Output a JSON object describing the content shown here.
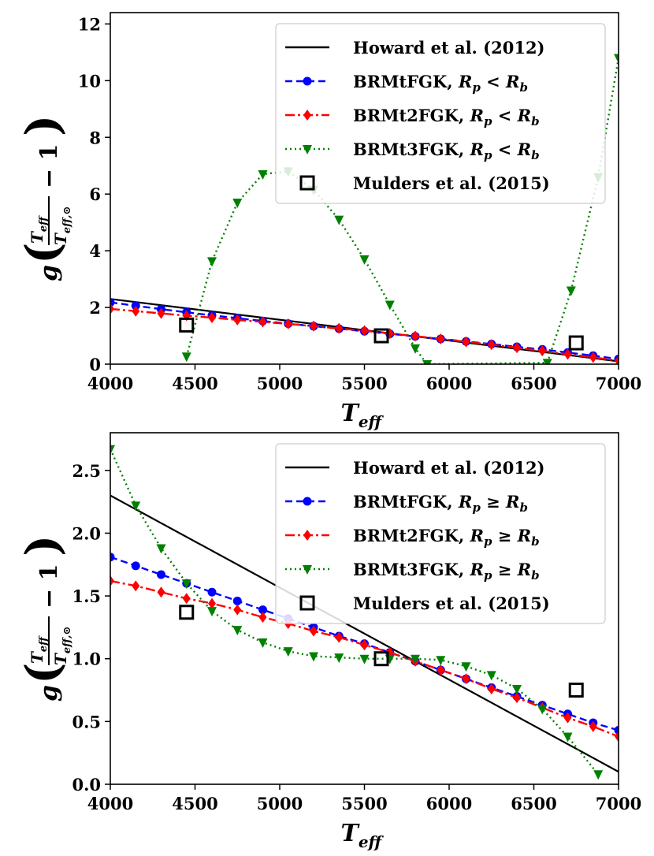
{
  "chart_data": [
    {
      "type": "line",
      "xlabel": "T_eff",
      "ylabel": "g(T_eff/T_eff,⊙ − 1)",
      "xlim": [
        4000,
        7000
      ],
      "ylim": [
        0,
        12.4
      ],
      "xticks": [
        "4000",
        "4500",
        "5000",
        "5500",
        "6000",
        "6500",
        "7000"
      ],
      "yticks": [
        "0",
        "2",
        "4",
        "6",
        "8",
        "10",
        "12"
      ],
      "legend_position": "top-right",
      "series": [
        {
          "name": "Howard et al. (2012)",
          "style": "solid",
          "color": "#000000",
          "marker": "none",
          "x": [
            4000,
            7000
          ],
          "y": [
            2.3,
            0.1
          ]
        },
        {
          "name": "BRMtFGK, R_p < R_b",
          "style": "dashed",
          "color": "#0000ff",
          "marker": "circle",
          "x": [
            4000,
            4150,
            4300,
            4450,
            4600,
            4750,
            4900,
            5050,
            5200,
            5350,
            5500,
            5650,
            5800,
            5950,
            6100,
            6250,
            6400,
            6550,
            6700,
            6850,
            7000
          ],
          "y": [
            2.18,
            2.06,
            1.94,
            1.83,
            1.72,
            1.62,
            1.52,
            1.43,
            1.34,
            1.25,
            1.16,
            1.07,
            0.98,
            0.89,
            0.8,
            0.71,
            0.61,
            0.52,
            0.41,
            0.3,
            0.18
          ]
        },
        {
          "name": "BRMt2FGK, R_p < R_b",
          "style": "dashdot",
          "color": "#ff0000",
          "marker": "diamond",
          "x": [
            4000,
            4150,
            4300,
            4450,
            4600,
            4750,
            4900,
            5050,
            5200,
            5350,
            5500,
            5650,
            5800,
            5950,
            6100,
            6250,
            6400,
            6550,
            6700,
            6850,
            7000
          ],
          "y": [
            1.95,
            1.87,
            1.79,
            1.71,
            1.64,
            1.56,
            1.49,
            1.42,
            1.34,
            1.26,
            1.18,
            1.08,
            0.99,
            0.89,
            0.79,
            0.69,
            0.58,
            0.47,
            0.35,
            0.24,
            0.12
          ]
        },
        {
          "name": "BRMt3FGK, R_p < R_b",
          "style": "dotted",
          "color": "#008000",
          "marker": "triangle-down",
          "x": [
            4450,
            4600,
            4750,
            4900,
            5050,
            5200,
            5350,
            5500,
            5650,
            5800,
            5870,
            6580,
            6720,
            6880,
            7000
          ],
          "y": [
            0.27,
            3.63,
            5.7,
            6.7,
            6.8,
            6.15,
            5.1,
            3.7,
            2.1,
            0.56,
            0,
            0.05,
            2.6,
            6.6,
            10.8
          ]
        },
        {
          "name": "Mulders et al. (2015)",
          "style": "none",
          "color": "#000000",
          "marker": "square-open",
          "x": [
            4450,
            5600,
            6750
          ],
          "y": [
            1.38,
            1.0,
            0.75
          ]
        }
      ]
    },
    {
      "type": "line",
      "xlabel": "T_eff",
      "ylabel": "g(T_eff/T_eff,⊙ − 1)",
      "xlim": [
        4000,
        7000
      ],
      "ylim": [
        0,
        2.8
      ],
      "xticks": [
        "4000",
        "4500",
        "5000",
        "5500",
        "6000",
        "6500",
        "7000"
      ],
      "yticks": [
        "0.0",
        "0.5",
        "1.0",
        "1.5",
        "2.0",
        "2.5"
      ],
      "legend_position": "top-right",
      "series": [
        {
          "name": "Howard et al. (2012)",
          "style": "solid",
          "color": "#000000",
          "marker": "none",
          "x": [
            4000,
            7000
          ],
          "y": [
            2.3,
            0.1
          ]
        },
        {
          "name": "BRMtFGK, R_p ≥ R_b",
          "style": "dashed",
          "color": "#0000ff",
          "marker": "circle",
          "x": [
            4000,
            4150,
            4300,
            4450,
            4600,
            4750,
            4900,
            5050,
            5200,
            5350,
            5500,
            5650,
            5800,
            5950,
            6100,
            6250,
            6400,
            6550,
            6700,
            6850,
            7000
          ],
          "y": [
            1.81,
            1.74,
            1.67,
            1.6,
            1.53,
            1.46,
            1.39,
            1.32,
            1.25,
            1.18,
            1.12,
            1.05,
            0.98,
            0.91,
            0.84,
            0.77,
            0.7,
            0.63,
            0.56,
            0.49,
            0.43
          ]
        },
        {
          "name": "BRMt2FGK, R_p ≥ R_b",
          "style": "dashdot",
          "color": "#ff0000",
          "marker": "diamond",
          "x": [
            4000,
            4150,
            4300,
            4450,
            4600,
            4750,
            4900,
            5050,
            5200,
            5350,
            5500,
            5650,
            5800,
            5950,
            6100,
            6250,
            6400,
            6550,
            6700,
            6850,
            7000
          ],
          "y": [
            1.62,
            1.58,
            1.53,
            1.48,
            1.44,
            1.39,
            1.33,
            1.28,
            1.22,
            1.17,
            1.11,
            1.05,
            0.98,
            0.91,
            0.84,
            0.76,
            0.69,
            0.61,
            0.53,
            0.46,
            0.38
          ]
        },
        {
          "name": "BRMt3FGK, R_p ≥ R_b",
          "style": "dotted",
          "color": "#008000",
          "marker": "triangle-down",
          "x": [
            4000,
            4150,
            4300,
            4450,
            4600,
            4750,
            4900,
            5050,
            5200,
            5350,
            5500,
            5650,
            5800,
            5950,
            6100,
            6250,
            6400,
            6550,
            6700,
            6880
          ],
          "y": [
            2.67,
            2.22,
            1.88,
            1.6,
            1.38,
            1.23,
            1.13,
            1.06,
            1.02,
            1.01,
            1.0,
            1.0,
            1.0,
            0.99,
            0.94,
            0.87,
            0.76,
            0.6,
            0.38,
            0.08
          ]
        },
        {
          "name": "Mulders et al. (2015)",
          "style": "none",
          "color": "#000000",
          "marker": "square-open",
          "x": [
            4450,
            5600,
            6750
          ],
          "y": [
            1.37,
            1.0,
            0.75
          ]
        }
      ]
    }
  ]
}
